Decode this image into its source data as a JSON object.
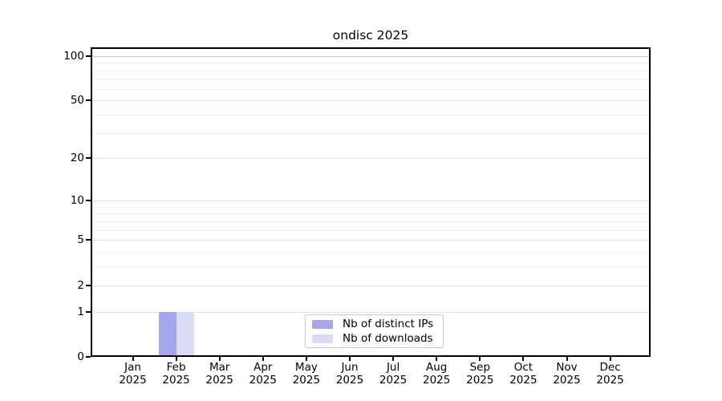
{
  "chart_data": {
    "type": "bar",
    "title": "ondisc 2025",
    "categories": [
      "Jan 2025",
      "Feb 2025",
      "Mar 2025",
      "Apr 2025",
      "May 2025",
      "Jun 2025",
      "Jul 2025",
      "Aug 2025",
      "Sep 2025",
      "Oct 2025",
      "Nov 2025",
      "Dec 2025"
    ],
    "series": [
      {
        "name": "Nb of distinct IPs",
        "color": "#a6a6ef",
        "values": [
          0,
          1,
          0,
          0,
          0,
          0,
          0,
          0,
          0,
          0,
          0,
          0
        ]
      },
      {
        "name": "Nb of downloads",
        "color": "#dbdbf6",
        "values": [
          0,
          1,
          0,
          0,
          0,
          0,
          0,
          0,
          0,
          0,
          0,
          0
        ]
      }
    ],
    "xlabel": "",
    "ylabel": "",
    "y_scale": "log1p",
    "y_ticks": [
      0,
      1,
      2,
      5,
      10,
      20,
      50,
      100
    ],
    "y_minor_gridlines": [
      3,
      4,
      6,
      7,
      8,
      9,
      30,
      40,
      60,
      70,
      80,
      90
    ],
    "ylim": [
      0,
      115
    ],
    "grid": "horizontal",
    "legend": {
      "position": "bottom-center",
      "entries": [
        "Nb of distinct IPs",
        "Nb of downloads"
      ]
    }
  },
  "colors": {
    "background": "#ffffff",
    "axis": "#000000",
    "text": "#000000",
    "grid_minor": "#efefef",
    "grid_major": "#e2e2e2",
    "grid_top": "#c9c9c9",
    "legend_border": "#c8c8c8",
    "bar_distinct_ips": "#a6a6ef",
    "bar_downloads": "#dbdbf6"
  }
}
